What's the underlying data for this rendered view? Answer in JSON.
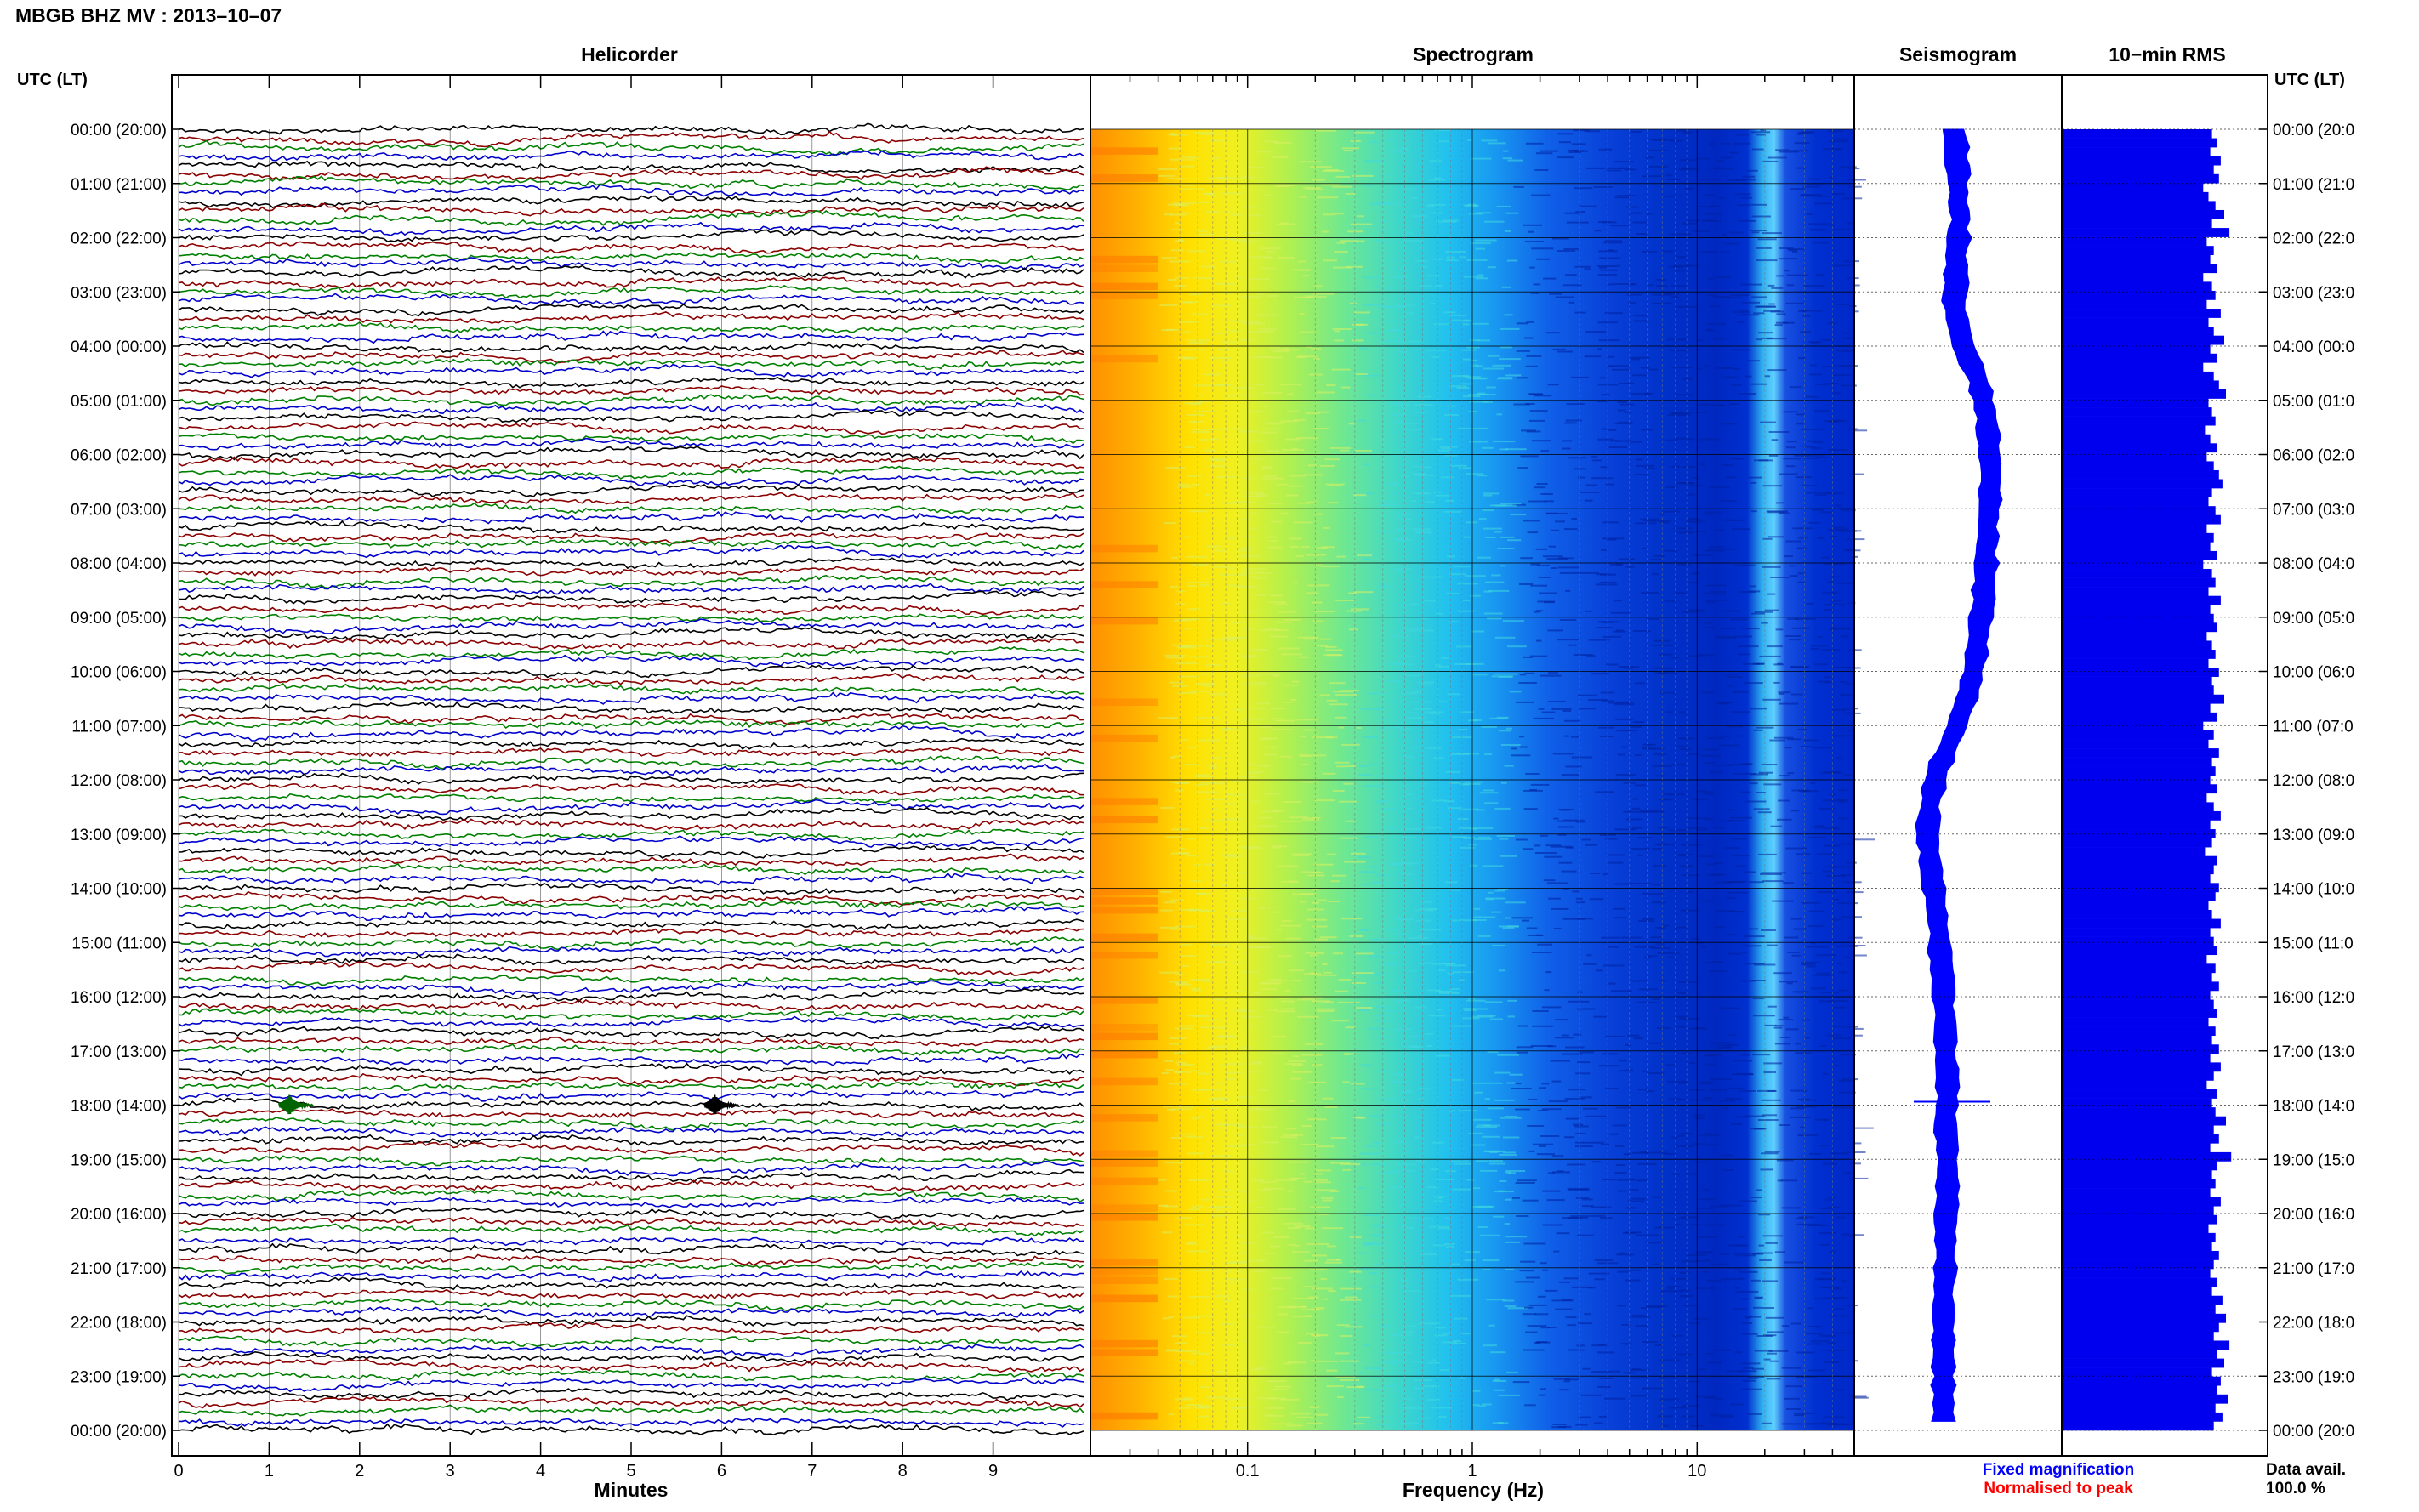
{
  "header": {
    "title": "MBGB BHZ MV : 2013–10–07"
  },
  "panels": {
    "helicorder": "Helicorder",
    "spectrogram": "Spectrogram",
    "seismogram": "Seismogram",
    "rms": "10−min RMS"
  },
  "utc_header_left": "UTC (LT)",
  "utc_header_right": "UTC (LT)",
  "hour_labels": [
    "00:00 (20:00)",
    "01:00 (21:00)",
    "02:00 (22:00)",
    "03:00 (23:00)",
    "04:00 (00:00)",
    "05:00 (01:00)",
    "06:00 (02:00)",
    "07:00 (03:00)",
    "08:00 (04:00)",
    "09:00 (05:00)",
    "10:00 (06:00)",
    "11:00 (07:00)",
    "12:00 (08:00)",
    "13:00 (09:00)",
    "14:00 (10:00)",
    "15:00 (11:00)",
    "16:00 (12:00)",
    "17:00 (13:00)",
    "18:00 (14:00)",
    "19:00 (15:00)",
    "20:00 (16:00)",
    "21:00 (17:00)",
    "22:00 (18:00)",
    "23:00 (19:00)",
    "00:00 (20:00)"
  ],
  "hour_labels_right": [
    "00:00 (20:0",
    "01:00 (21:0",
    "02:00 (22:0",
    "03:00 (23:0",
    "04:00 (00:0",
    "05:00 (01:0",
    "06:00 (02:0",
    "07:00 (03:0",
    "08:00 (04:0",
    "09:00 (05:0",
    "10:00 (06:0",
    "11:00 (07:0",
    "12:00 (08:0",
    "13:00 (09:0",
    "14:00 (10:0",
    "15:00 (11:0",
    "16:00 (12:0",
    "17:00 (13:0",
    "18:00 (14:0",
    "19:00 (15:0",
    "20:00 (16:0",
    "21:00 (17:0",
    "22:00 (18:0",
    "23:00 (19:0",
    "00:00 (20:0"
  ],
  "footer": {
    "fixed_magnification": "Fixed magnification",
    "normalised_to_peak": "Normalised to peak",
    "data_avail_label": "Data avail.",
    "data_avail_value": "100.0 %"
  },
  "colors": {
    "trace_cycle": [
      "#000000",
      "#8b0000",
      "#008000",
      "#0000cc"
    ],
    "rms_bar": "#0000ee",
    "seismogram": "#0000ff",
    "fixed_text": "#0000ff",
    "normalised_text": "#ff0000",
    "event_green": "#006400"
  },
  "chart_data": [
    {
      "type": "line",
      "panel": "helicorder",
      "title": "Helicorder",
      "xlabel": "Minutes",
      "xlim": [
        0,
        10
      ],
      "x_ticks": [
        "0",
        "1",
        "2",
        "3",
        "4",
        "5",
        "6",
        "7",
        "8",
        "9"
      ],
      "lines_per_hour": 6,
      "trace_count": 145,
      "events": [
        {
          "hour": 18,
          "minute": 1.3,
          "label": "event-green"
        },
        {
          "hour": 18,
          "minute": 6.0,
          "label": "event-black"
        }
      ]
    },
    {
      "type": "heatmap",
      "panel": "spectrogram",
      "title": "Spectrogram",
      "xlabel": "Frequency (Hz)",
      "xscale": "log",
      "xlim": [
        0.02,
        50
      ],
      "x_ticks": [
        "0.1",
        "1",
        "10"
      ],
      "colormap": "jet",
      "rows_per_hour": 6
    },
    {
      "type": "area",
      "panel": "seismogram",
      "title": "Seismogram",
      "description_values": "envelope amplitude per 10-min",
      "values": [
        0.45,
        0.46,
        0.47,
        0.46,
        0.47,
        0.48,
        0.47,
        0.48,
        0.47,
        0.48,
        0.49,
        0.47,
        0.48,
        0.47,
        0.46,
        0.47,
        0.46,
        0.47,
        0.46,
        0.45,
        0.46,
        0.47,
        0.48,
        0.49,
        0.5,
        0.52,
        0.54,
        0.56,
        0.58,
        0.59,
        0.6,
        0.61,
        0.62,
        0.62,
        0.63,
        0.63,
        0.63,
        0.64,
        0.64,
        0.64,
        0.63,
        0.64,
        0.63,
        0.63,
        0.62,
        0.63,
        0.62,
        0.61,
        0.62,
        0.61,
        0.61,
        0.6,
        0.61,
        0.6,
        0.59,
        0.58,
        0.58,
        0.57,
        0.57,
        0.56,
        0.55,
        0.54,
        0.53,
        0.52,
        0.5,
        0.48,
        0.47,
        0.45,
        0.43,
        0.41,
        0.39,
        0.37,
        0.36,
        0.35,
        0.34,
        0.33,
        0.33,
        0.32,
        0.32,
        0.32,
        0.33,
        0.33,
        0.34,
        0.34,
        0.35,
        0.36,
        0.36,
        0.37,
        0.37,
        0.38,
        0.38,
        0.38,
        0.39,
        0.39,
        0.4,
        0.4,
        0.4,
        0.4,
        0.41,
        0.41,
        0.41,
        0.41,
        0.41,
        0.41,
        0.42,
        0.42,
        0.42,
        0.42,
        0.42,
        0.41,
        0.41,
        0.41,
        0.42,
        0.42,
        0.42,
        0.42,
        0.42,
        0.42,
        0.42,
        0.42,
        0.41,
        0.41,
        0.41,
        0.41,
        0.41,
        0.41,
        0.41,
        0.41,
        0.4,
        0.4,
        0.4,
        0.4,
        0.4,
        0.4,
        0.4,
        0.4,
        0.4,
        0.4,
        0.4,
        0.4,
        0.4,
        0.4,
        0.4,
        0.4
      ]
    },
    {
      "type": "bar",
      "panel": "rms",
      "title": "10−min RMS",
      "orientation": "horizontal",
      "values": [
        0.85,
        0.88,
        0.84,
        0.9,
        0.86,
        0.89,
        0.8,
        0.83,
        0.87,
        0.92,
        0.85,
        0.95,
        0.82,
        0.86,
        0.84,
        0.88,
        0.8,
        0.85,
        0.87,
        0.82,
        0.9,
        0.83,
        0.86,
        0.92,
        0.84,
        0.88,
        0.8,
        0.86,
        0.89,
        0.93,
        0.83,
        0.85,
        0.87,
        0.81,
        0.84,
        0.88,
        0.82,
        0.86,
        0.89,
        0.91,
        0.85,
        0.83,
        0.87,
        0.9,
        0.82,
        0.86,
        0.84,
        0.88,
        0.8,
        0.85,
        0.87,
        0.83,
        0.9,
        0.84,
        0.86,
        0.88,
        0.82,
        0.85,
        0.87,
        0.83,
        0.89,
        0.85,
        0.86,
        0.92,
        0.84,
        0.88,
        0.8,
        0.86,
        0.83,
        0.89,
        0.85,
        0.87,
        0.84,
        0.88,
        0.82,
        0.86,
        0.9,
        0.84,
        0.87,
        0.85,
        0.81,
        0.88,
        0.86,
        0.84,
        0.89,
        0.87,
        0.83,
        0.85,
        0.9,
        0.84,
        0.86,
        0.88,
        0.82,
        0.87,
        0.85,
        0.89,
        0.84,
        0.86,
        0.88,
        0.83,
        0.87,
        0.85,
        0.89,
        0.84,
        0.9,
        0.86,
        0.82,
        0.88,
        0.85,
        0.87,
        0.93,
        0.86,
        0.89,
        0.84,
        0.96,
        0.88,
        0.85,
        0.87,
        0.84,
        0.9,
        0.86,
        0.88,
        0.83,
        0.87,
        0.85,
        0.89,
        0.86,
        0.84,
        0.88,
        0.85,
        0.91,
        0.87,
        0.93,
        0.89,
        0.86,
        0.95,
        0.88,
        0.92,
        0.85,
        0.9,
        0.88,
        0.94,
        0.87,
        0.91,
        0.86
      ]
    }
  ]
}
